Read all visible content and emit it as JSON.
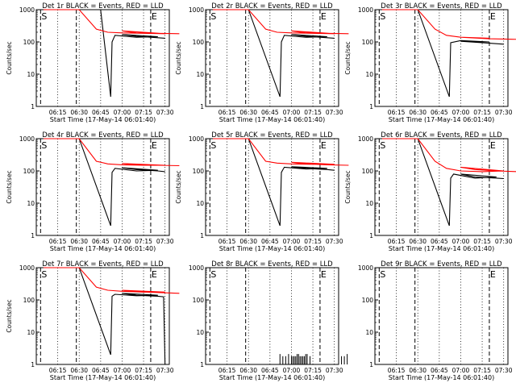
{
  "chart_data": [
    {
      "type": "line",
      "title": "Det 1r BLACK = Events, RED = LLD",
      "ylabel": "Counts/sec",
      "xlabel": "Start Time (17-May-14 06:01:40)",
      "yscale": "log",
      "ylim": [
        1,
        1000
      ],
      "xticks": [
        "06:15",
        "06:30",
        "06:45",
        "07:00",
        "07:15",
        "07:30"
      ],
      "markers": [
        {
          "label": "S",
          "t": "06:03"
        },
        {
          "label": "E",
          "t": "07:20"
        }
      ],
      "series": [
        {
          "color": "#000000",
          "values": [
            [
              6.05,
              1000
            ],
            [
              6.1,
              1000
            ],
            [
              6.3,
              1000
            ],
            [
              6.45,
              1000
            ],
            [
              6.52,
              2
            ],
            [
              6.53,
              100
            ],
            [
              6.55,
              160
            ],
            [
              6.7,
              140
            ],
            [
              6.85,
              145
            ],
            [
              7.0,
              170
            ],
            [
              7.1,
              150
            ],
            [
              7.25,
              135
            ],
            [
              7.3,
              130
            ]
          ]
        },
        {
          "color": "#ff0000",
          "values": [
            [
              6.05,
              1000
            ],
            [
              6.1,
              1000
            ],
            [
              6.3,
              1000
            ],
            [
              6.42,
              250
            ],
            [
              6.5,
              200
            ],
            [
              6.6,
              190
            ],
            [
              6.75,
              185
            ],
            [
              6.9,
              180
            ],
            [
              7.0,
              220
            ],
            [
              7.1,
              190
            ],
            [
              7.25,
              185
            ],
            [
              7.4,
              180
            ]
          ]
        }
      ]
    },
    {
      "type": "line",
      "title": "Det 2r BLACK = Events, RED = LLD",
      "ylabel": "Counts/sec",
      "xlabel": "Start Time (17-May-14 06:01:40)",
      "yscale": "log",
      "ylim": [
        1,
        1000
      ],
      "xticks": [
        "06:15",
        "06:30",
        "06:45",
        "07:00",
        "07:15",
        "07:30"
      ],
      "markers": [
        {
          "label": "S",
          "t": "06:03"
        },
        {
          "label": "E",
          "t": "07:20"
        }
      ],
      "series": [
        {
          "color": "#000000",
          "values": [
            [
              6.05,
              1000
            ],
            [
              6.3,
              1000
            ],
            [
              6.52,
              2
            ],
            [
              6.53,
              100
            ],
            [
              6.55,
              160
            ],
            [
              6.7,
              140
            ],
            [
              6.85,
              145
            ],
            [
              7.0,
              170
            ],
            [
              7.1,
              150
            ],
            [
              7.25,
              135
            ],
            [
              7.3,
              130
            ]
          ]
        },
        {
          "color": "#ff0000",
          "values": [
            [
              6.05,
              1000
            ],
            [
              6.3,
              1000
            ],
            [
              6.42,
              250
            ],
            [
              6.5,
              200
            ],
            [
              6.6,
              190
            ],
            [
              6.75,
              185
            ],
            [
              6.9,
              180
            ],
            [
              7.0,
              220
            ],
            [
              7.1,
              190
            ],
            [
              7.25,
              185
            ],
            [
              7.4,
              180
            ]
          ]
        }
      ]
    },
    {
      "type": "line",
      "title": "Det 3r BLACK = Events, RED = LLD",
      "ylabel": "Counts/sec",
      "xlabel": "Start Time (17-May-14 06:01:40)",
      "yscale": "log",
      "ylim": [
        1,
        1000
      ],
      "xticks": [
        "06:15",
        "06:30",
        "06:45",
        "07:00",
        "07:15",
        "07:30"
      ],
      "markers": [
        {
          "label": "S",
          "t": "06:03"
        },
        {
          "label": "E",
          "t": "07:20"
        }
      ],
      "series": [
        {
          "color": "#000000",
          "values": [
            [
              6.05,
              1000
            ],
            [
              6.3,
              1000
            ],
            [
              6.52,
              2
            ],
            [
              6.53,
              95
            ],
            [
              6.6,
              110
            ],
            [
              6.8,
              100
            ],
            [
              7.0,
              105
            ],
            [
              7.15,
              95
            ],
            [
              7.3,
              85
            ]
          ]
        },
        {
          "color": "#ff0000",
          "values": [
            [
              6.05,
              1000
            ],
            [
              6.3,
              1000
            ],
            [
              6.42,
              250
            ],
            [
              6.5,
              160
            ],
            [
              6.6,
              140
            ],
            [
              6.8,
              130
            ],
            [
              7.0,
              140
            ],
            [
              7.2,
              125
            ],
            [
              7.4,
              120
            ]
          ]
        }
      ]
    },
    {
      "type": "line",
      "title": "Det 4r BLACK = Events, RED = LLD",
      "ylabel": "Counts/sec",
      "xlabel": "Start Time (17-May-14 06:01:40)",
      "yscale": "log",
      "ylim": [
        1,
        1000
      ],
      "xticks": [
        "06:15",
        "06:30",
        "06:45",
        "07:00",
        "07:15",
        "07:30"
      ],
      "markers": [
        {
          "label": "S",
          "t": "06:03"
        },
        {
          "label": "E",
          "t": "07:20"
        }
      ],
      "series": [
        {
          "color": "#000000",
          "values": [
            [
              6.05,
              1000
            ],
            [
              6.3,
              1000
            ],
            [
              6.52,
              2
            ],
            [
              6.53,
              90
            ],
            [
              6.55,
              120
            ],
            [
              6.7,
              100
            ],
            [
              6.85,
              105
            ],
            [
              7.0,
              125
            ],
            [
              7.1,
              110
            ],
            [
              7.25,
              100
            ],
            [
              7.3,
              95
            ]
          ]
        },
        {
          "color": "#ff0000",
          "values": [
            [
              6.05,
              1000
            ],
            [
              6.3,
              1000
            ],
            [
              6.42,
              200
            ],
            [
              6.5,
              165
            ],
            [
              6.6,
              155
            ],
            [
              6.75,
              150
            ],
            [
              6.9,
              150
            ],
            [
              7.0,
              170
            ],
            [
              7.1,
              155
            ],
            [
              7.25,
              150
            ],
            [
              7.4,
              145
            ]
          ]
        }
      ]
    },
    {
      "type": "line",
      "title": "Det 5r BLACK = Events, RED = LLD",
      "ylabel": "Counts/sec",
      "xlabel": "Start Time (17-May-14 06:01:40)",
      "yscale": "log",
      "ylim": [
        1,
        1000
      ],
      "xticks": [
        "06:15",
        "06:30",
        "06:45",
        "07:00",
        "07:15",
        "07:30"
      ],
      "markers": [
        {
          "label": "S",
          "t": "06:03"
        },
        {
          "label": "E",
          "t": "07:20"
        }
      ],
      "series": [
        {
          "color": "#000000",
          "values": [
            [
              6.05,
              1000
            ],
            [
              6.3,
              1000
            ],
            [
              6.52,
              2
            ],
            [
              6.53,
              90
            ],
            [
              6.55,
              130
            ],
            [
              6.7,
              115
            ],
            [
              6.85,
              120
            ],
            [
              7.0,
              135
            ],
            [
              7.1,
              120
            ],
            [
              7.25,
              110
            ],
            [
              7.3,
              105
            ]
          ]
        },
        {
          "color": "#ff0000",
          "values": [
            [
              6.05,
              1000
            ],
            [
              6.3,
              1000
            ],
            [
              6.42,
              200
            ],
            [
              6.5,
              175
            ],
            [
              6.6,
              165
            ],
            [
              6.75,
              160
            ],
            [
              6.9,
              160
            ],
            [
              7.0,
              185
            ],
            [
              7.1,
              165
            ],
            [
              7.25,
              155
            ],
            [
              7.4,
              150
            ]
          ]
        }
      ]
    },
    {
      "type": "line",
      "title": "Det 6r BLACK = Events, RED = LLD",
      "ylabel": "Counts/sec",
      "xlabel": "Start Time (17-May-14 06:01:40)",
      "yscale": "log",
      "ylim": [
        1,
        1000
      ],
      "xticks": [
        "06:15",
        "06:30",
        "06:45",
        "07:00",
        "07:15",
        "07:30"
      ],
      "markers": [
        {
          "label": "S",
          "t": "06:03"
        },
        {
          "label": "E",
          "t": "07:20"
        }
      ],
      "series": [
        {
          "color": "#000000",
          "values": [
            [
              6.05,
              1000
            ],
            [
              6.3,
              1000
            ],
            [
              6.52,
              2
            ],
            [
              6.53,
              60
            ],
            [
              6.55,
              80
            ],
            [
              6.7,
              60
            ],
            [
              6.85,
              65
            ],
            [
              7.0,
              80
            ],
            [
              7.1,
              65
            ],
            [
              7.25,
              60
            ],
            [
              7.3,
              58
            ]
          ]
        },
        {
          "color": "#ff0000",
          "values": [
            [
              6.05,
              1000
            ],
            [
              6.3,
              1000
            ],
            [
              6.42,
              200
            ],
            [
              6.5,
              120
            ],
            [
              6.6,
              100
            ],
            [
              6.75,
              95
            ],
            [
              6.9,
              100
            ],
            [
              7.0,
              130
            ],
            [
              7.1,
              110
            ],
            [
              7.25,
              100
            ],
            [
              7.4,
              95
            ]
          ]
        }
      ]
    },
    {
      "type": "line",
      "title": "Det 7r BLACK = Events, RED = LLD",
      "ylabel": "Counts/sec",
      "xlabel": "Start Time (17-May-14 06:01:40)",
      "yscale": "log",
      "ylim": [
        1,
        1000
      ],
      "xticks": [
        "06:15",
        "06:30",
        "06:45",
        "07:00",
        "07:15",
        "07:30"
      ],
      "markers": [
        {
          "label": "S",
          "t": "06:03"
        },
        {
          "label": "E",
          "t": "07:20"
        }
      ],
      "series": [
        {
          "color": "#000000",
          "values": [
            [
              6.05,
              1000
            ],
            [
              6.3,
              1000
            ],
            [
              6.52,
              2
            ],
            [
              6.53,
              130
            ],
            [
              6.55,
              150
            ],
            [
              6.7,
              135
            ],
            [
              6.85,
              140
            ],
            [
              7.0,
              160
            ],
            [
              7.1,
              140
            ],
            [
              7.25,
              130
            ],
            [
              7.29,
              125
            ],
            [
              7.3,
              1
            ]
          ]
        },
        {
          "color": "#ff0000",
          "values": [
            [
              6.05,
              1000
            ],
            [
              6.3,
              1000
            ],
            [
              6.42,
              250
            ],
            [
              6.5,
              200
            ],
            [
              6.6,
              185
            ],
            [
              6.75,
              175
            ],
            [
              6.9,
              175
            ],
            [
              7.0,
              200
            ],
            [
              7.1,
              180
            ],
            [
              7.25,
              170
            ],
            [
              7.4,
              160
            ]
          ]
        }
      ]
    },
    {
      "type": "line",
      "title": "Det 8r BLACK = Events, RED = LLD",
      "ylabel": "",
      "xlabel": "Start Time (17-May-14 06:01:40)",
      "yscale": "log",
      "ylim": [
        1,
        1000
      ],
      "xticks": [
        "06:15",
        "06:30",
        "06:45",
        "07:00",
        "07:15",
        "07:30"
      ],
      "markers": [
        {
          "label": "S",
          "t": "06:03"
        },
        {
          "label": "E",
          "t": "07:20"
        }
      ],
      "spikes": [
        6.52,
        6.54,
        6.56,
        6.58,
        6.6,
        6.62,
        6.64,
        6.66,
        6.68,
        6.7,
        6.95,
        6.97,
        6.99,
        7.01,
        7.03,
        7.05,
        7.07,
        7.09,
        7.11,
        7.13
      ],
      "series": []
    },
    {
      "type": "line",
      "title": "Det 9r BLACK = Events, RED = LLD",
      "ylabel": "",
      "xlabel": "Start Time (17-May-14 06:01:40)",
      "yscale": "log",
      "ylim": [
        1,
        1000
      ],
      "xticks": [
        "06:15",
        "06:30",
        "06:45",
        "07:00",
        "07:15",
        "07:30"
      ],
      "markers": [
        {
          "label": "S",
          "t": "06:03"
        },
        {
          "label": "E",
          "t": "07:20"
        }
      ],
      "series": []
    }
  ],
  "yticklabels": [
    "1",
    "10",
    "100",
    "1000"
  ]
}
